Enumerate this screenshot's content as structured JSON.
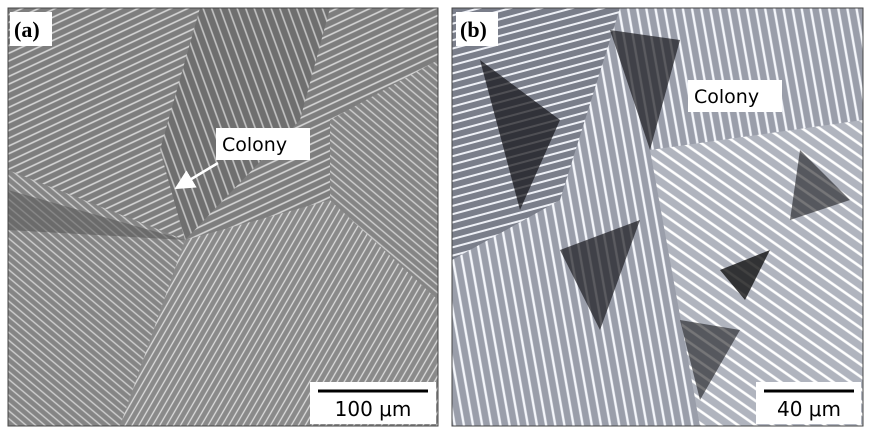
{
  "panels": [
    {
      "label": "(a)",
      "annotation": "Colony",
      "scale_bar": "100 μm"
    },
    {
      "label": "(b)",
      "annotation": "Colony",
      "scale_bar": "40 μm"
    }
  ]
}
